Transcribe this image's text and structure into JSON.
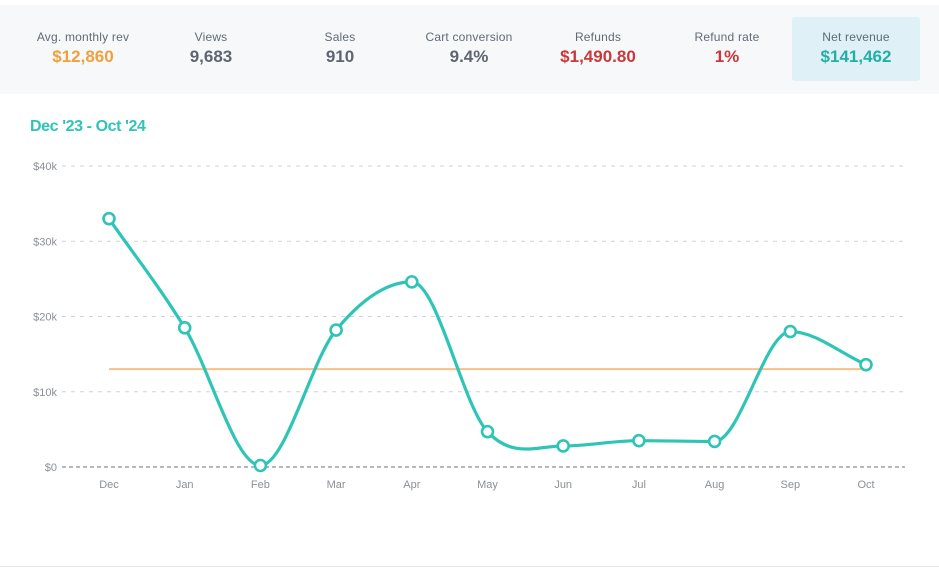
{
  "stats": [
    {
      "label": "Avg. monthly rev",
      "value": "$12,860",
      "color": "#f0a03c"
    },
    {
      "label": "Views",
      "value": "9,683",
      "color": "#5f6570"
    },
    {
      "label": "Sales",
      "value": "910",
      "color": "#5f6570"
    },
    {
      "label": "Cart conversion",
      "value": "9.4%",
      "color": "#5f6570"
    },
    {
      "label": "Refunds",
      "value": "$1,490.80",
      "color": "#c9383a"
    },
    {
      "label": "Refund rate",
      "value": "1%",
      "color": "#c9383a"
    },
    {
      "label": "Net revenue",
      "value": "$141,462",
      "color": "#22b0a6",
      "highlighted": true
    }
  ],
  "chart_title": "Dec '23 - Oct '24",
  "chart_data": {
    "type": "line",
    "categories": [
      "Dec",
      "Jan",
      "Feb",
      "Mar",
      "Apr",
      "May",
      "Jun",
      "Jul",
      "Aug",
      "Sep",
      "Oct"
    ],
    "series": [
      {
        "values": [
          33000,
          18500,
          200,
          18200,
          24600,
          4700,
          2800,
          3500,
          3400,
          18000,
          13600
        ],
        "color": "#2ec4b6"
      }
    ],
    "average_line": {
      "value": 13000,
      "color": "#f8c08a"
    },
    "ylim": [
      0,
      40000
    ],
    "yticks": [
      {
        "value": 0,
        "label": "$0"
      },
      {
        "value": 10000,
        "label": "$10k"
      },
      {
        "value": 20000,
        "label": "$20k"
      },
      {
        "value": 30000,
        "label": "$30k"
      },
      {
        "value": 40000,
        "label": "$40k"
      }
    ],
    "grid": true,
    "xlabel": "",
    "ylabel": ""
  }
}
